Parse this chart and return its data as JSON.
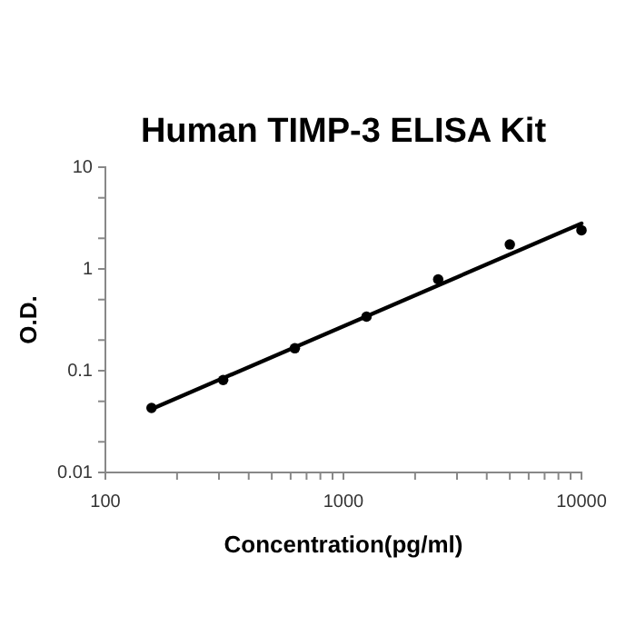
{
  "chart_data": {
    "type": "scatter",
    "title": "Human TIMP-3 ELISA Kit",
    "xlabel": "Concentration(pg/ml)",
    "ylabel": "O.D.",
    "log": "xy",
    "grid": false,
    "xlim": [
      100,
      10000
    ],
    "ylim": [
      0.01,
      10
    ],
    "xticks": [
      100,
      {
        "value": 200,
        "label": null
      },
      {
        "value": 300,
        "label": null
      },
      {
        "value": 400,
        "label": null
      },
      {
        "value": 500,
        "label": null
      },
      {
        "value": 600,
        "label": null
      },
      {
        "value": 700,
        "label": null
      },
      {
        "value": 800,
        "label": null
      },
      {
        "value": 900,
        "label": null
      },
      1000,
      {
        "value": 2000,
        "label": null
      },
      {
        "value": 3000,
        "label": null
      },
      {
        "value": 4000,
        "label": null
      },
      {
        "value": 5000,
        "label": null
      },
      {
        "value": 6000,
        "label": null
      },
      {
        "value": 7000,
        "label": null
      },
      {
        "value": 8000,
        "label": null
      },
      {
        "value": 9000,
        "label": null
      },
      10000
    ],
    "yticks": [
      0.01,
      {
        "value": 0.02,
        "label": null
      },
      {
        "value": 0.05,
        "label": null
      },
      0.1,
      {
        "value": 0.2,
        "label": null
      },
      {
        "value": 0.5,
        "label": null
      },
      1,
      {
        "value": 2,
        "label": null
      },
      {
        "value": 5,
        "label": null
      },
      10
    ],
    "series": [
      {
        "color": "#000000",
        "marker": "circle",
        "x": [
          156.25,
          312.5,
          625,
          1250,
          2500,
          5000,
          10000
        ],
        "values": [
          0.043,
          0.081,
          0.166,
          0.34,
          0.79,
          1.74,
          2.4
        ]
      },
      {
        "type": "line",
        "color": "#000000",
        "marker": "none",
        "line_style": "solid",
        "x": [
          156.25,
          10000
        ],
        "values": [
          0.042,
          2.8
        ]
      }
    ]
  }
}
